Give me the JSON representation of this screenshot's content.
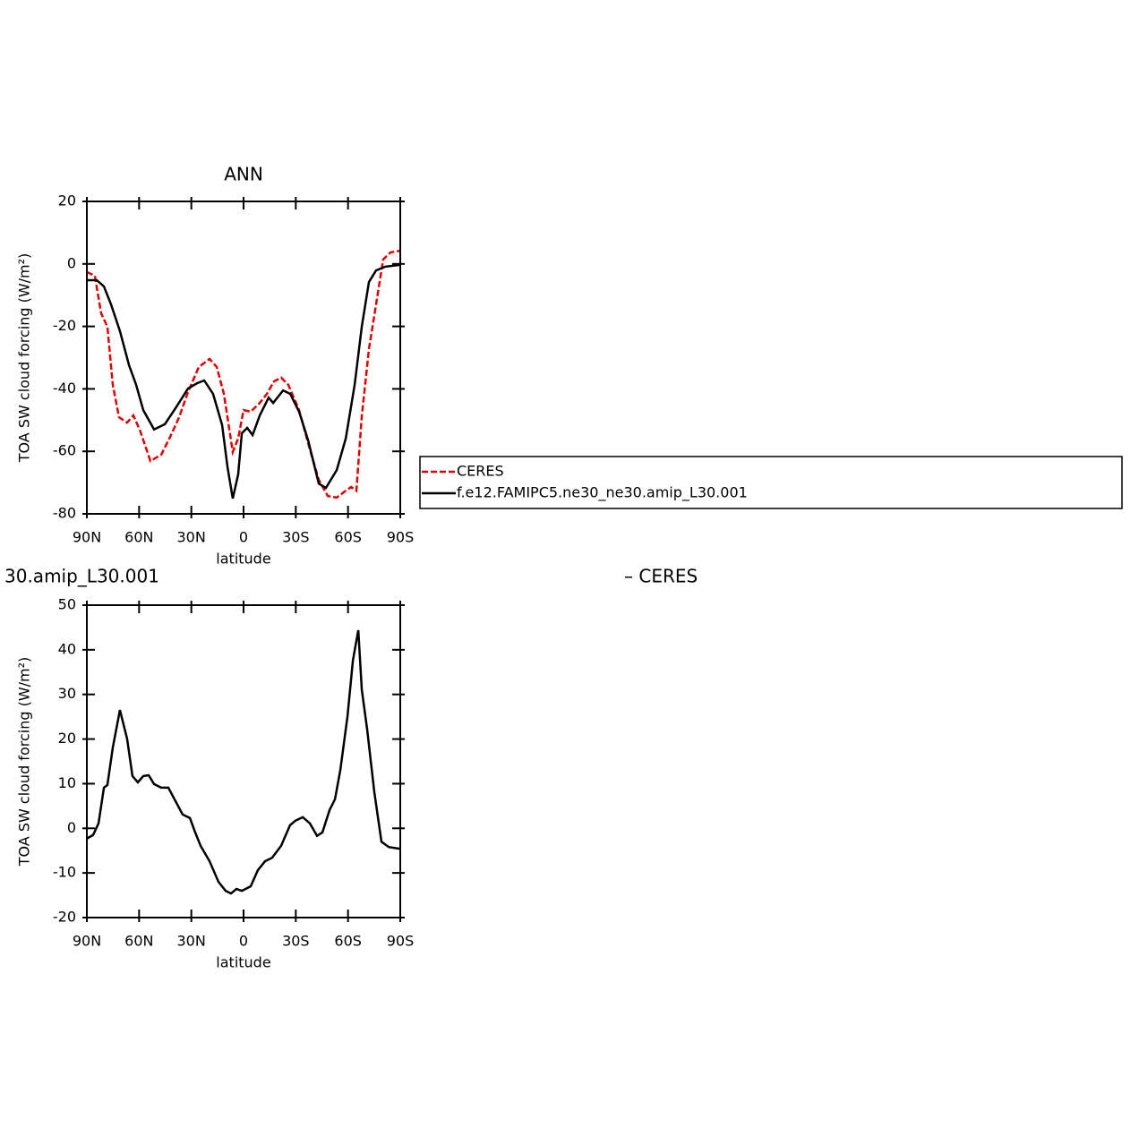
{
  "chart_data": [
    {
      "type": "line",
      "title": "ANN",
      "xlabel": "latitude",
      "ylabel": "TOA SW cloud forcing (W/m²)",
      "xlim": [
        90,
        -90
      ],
      "xticks": [
        {
          "value": 90,
          "label": "90N"
        },
        {
          "value": 60,
          "label": "60N"
        },
        {
          "value": 30,
          "label": "30N"
        },
        0,
        {
          "value": -30,
          "label": "30S"
        },
        {
          "value": -60,
          "label": "60S"
        },
        {
          "value": -90,
          "label": "90S"
        }
      ],
      "ylim": [
        -80,
        20
      ],
      "yticks": [
        -80,
        -60,
        -40,
        -20,
        0,
        20
      ],
      "legend": "right",
      "series": [
        {
          "name": "CERES",
          "color": "#e00000",
          "linestyle": "dashed",
          "x": [
            90,
            85.4,
            81.8,
            78.2,
            75.1,
            71.5,
            66.9,
            63.3,
            59.6,
            53.5,
            47.3,
            42.2,
            37,
            31.9,
            25.7,
            19.5,
            15.4,
            11.3,
            6.2,
            3.1,
            0,
            -4.1,
            -9.3,
            -13.4,
            -17.5,
            -21.6,
            -25.7,
            -31.9,
            -38.1,
            -43.2,
            -48.4,
            -53.5,
            -58.7,
            -61.8,
            -64.8,
            -67.9,
            -72,
            -76.1,
            -80.2,
            -84.4,
            -90
          ],
          "values": [
            -2.6,
            -3.8,
            -15.8,
            -20.1,
            -38.7,
            -49.1,
            -50.8,
            -48.5,
            -53.1,
            -63.1,
            -61.1,
            -55.4,
            -49.1,
            -41,
            -33,
            -30.4,
            -33,
            -41.6,
            -60.2,
            -55.9,
            -46.8,
            -47.3,
            -44.5,
            -41.6,
            -37.6,
            -36.4,
            -38.7,
            -46.8,
            -59.4,
            -69.1,
            -74.3,
            -74.8,
            -72.6,
            -71.4,
            -72.6,
            -48.8,
            -27.3,
            -13,
            1.4,
            3.7,
            4.2
          ]
        },
        {
          "name": "f.e12.FAMIPC5.ne30_ne30.amip_L30.001",
          "color": "#000000",
          "linestyle": "solid",
          "x": [
            90,
            84.3,
            80.2,
            76.1,
            71,
            65.8,
            61.7,
            57.6,
            51.4,
            45.2,
            39.1,
            31.9,
            26.7,
            22.6,
            17.5,
            12.3,
            9.2,
            6.2,
            3.1,
            1,
            -2.1,
            -5.2,
            -9.3,
            -14.4,
            -17,
            -22.7,
            -26.8,
            -31.9,
            -37.1,
            -43.2,
            -47.3,
            -53.5,
            -58.7,
            -63.8,
            -67.9,
            -72,
            -76.1,
            -81.3,
            -90
          ],
          "values": [
            -5.2,
            -5.2,
            -7.2,
            -13,
            -21.5,
            -32.4,
            -38.7,
            -46.8,
            -53,
            -51.3,
            -46.2,
            -39.9,
            -38.2,
            -37.3,
            -41.6,
            -51.6,
            -65.1,
            -75.1,
            -67.4,
            -54.2,
            -52.5,
            -54.8,
            -48.5,
            -42.8,
            -44.5,
            -40.5,
            -41.6,
            -47.3,
            -56.5,
            -70.3,
            -71.7,
            -66,
            -55.9,
            -38.7,
            -20.1,
            -5.8,
            -2.1,
            -0.9,
            -0.3
          ]
        }
      ]
    },
    {
      "type": "line",
      "title": "30.amip_L30.001",
      "title_right": "– CERES",
      "xlabel": "latitude",
      "ylabel": "TOA SW cloud forcing (W/m²)",
      "xlim": [
        90,
        -90
      ],
      "xticks": [
        {
          "value": 90,
          "label": "90N"
        },
        {
          "value": 60,
          "label": "60N"
        },
        {
          "value": 30,
          "label": "30N"
        },
        0,
        {
          "value": -30,
          "label": "30S"
        },
        {
          "value": -60,
          "label": "60S"
        },
        {
          "value": -90,
          "label": "90S"
        }
      ],
      "ylim": [
        -20,
        50
      ],
      "yticks": [
        -20,
        -10,
        0,
        10,
        20,
        30,
        40,
        50
      ],
      "series": [
        {
          "color": "#000000",
          "linestyle": "solid",
          "x": [
            90,
            86.4,
            83.3,
            80.2,
            78.2,
            75.1,
            71,
            66.9,
            63.8,
            60.7,
            57.6,
            54.5,
            51.4,
            47.3,
            43.2,
            39.1,
            35,
            30.8,
            27.8,
            24.7,
            19.5,
            14.4,
            10.3,
            7.2,
            4.1,
            1,
            -4.1,
            -8.2,
            -12.3,
            -16.4,
            -21.6,
            -26.7,
            -29.8,
            -34,
            -38.1,
            -42.2,
            -45.3,
            -49.4,
            -52.5,
            -55.6,
            -59.7,
            -62.8,
            -65.9,
            -67.9,
            -71,
            -75.1,
            -79.2,
            -83.4,
            -90
          ],
          "values": [
            -2.3,
            -1.5,
            1.1,
            9.1,
            9.7,
            18.1,
            26.5,
            20.1,
            11.7,
            10.3,
            11.7,
            11.9,
            9.9,
            9.1,
            9.1,
            6.1,
            3.1,
            2.3,
            -0.9,
            -3.9,
            -7.4,
            -12,
            -14,
            -14.6,
            -13.6,
            -14,
            -13,
            -9.4,
            -7.4,
            -6.6,
            -3.9,
            0.7,
            1.7,
            2.5,
            1.1,
            -1.7,
            -0.9,
            4.1,
            6.5,
            13.1,
            25.1,
            37.6,
            44.4,
            31.1,
            22.1,
            8.1,
            -3,
            -4.2,
            -4.6
          ]
        }
      ]
    }
  ]
}
